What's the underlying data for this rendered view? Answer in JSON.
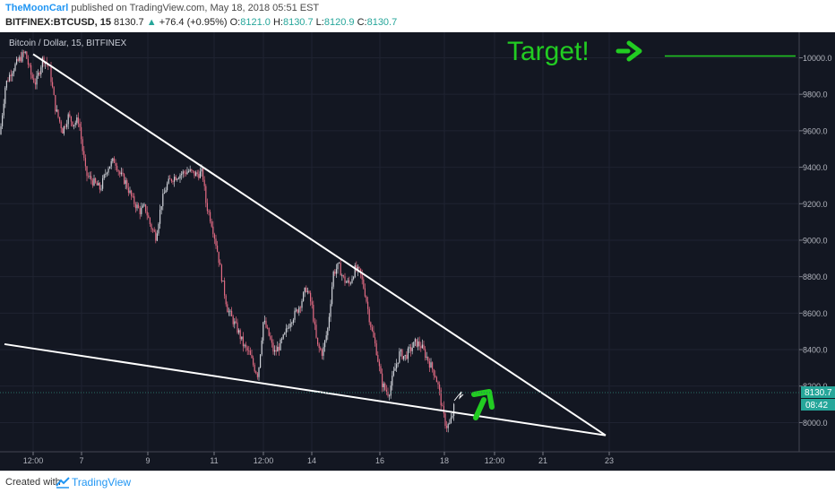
{
  "header": {
    "author": "TheMoonCarl",
    "published_text": "published on TradingView.com, May 18, 2018 05:51 EST",
    "symbol": "BITFINEX:BTCUSD, 15",
    "last": "8130.7",
    "change_arrow": "▲",
    "change": "+76.4 (+0.95%)",
    "o_label": "O:",
    "o_value": "8121.0",
    "h_label": "H:",
    "h_value": "8130.7",
    "l_label": "L:",
    "l_value": "8120.9",
    "c_label": "C:",
    "c_value": "8130.7"
  },
  "footer": {
    "created_with": "Created with",
    "brand": "TradingView",
    "logo_icon": "tradingview-logo-icon"
  },
  "chart_data": {
    "type": "candlestick",
    "title": "Bitcoin / Dollar, 15, BITFINEX",
    "ylim": [
      7840,
      10140
    ],
    "y_ticks": [
      "10000.0",
      "9800.0",
      "9600.0",
      "9400.0",
      "9200.0",
      "9000.0",
      "8800.0",
      "8600.0",
      "8400.0",
      "8200.0",
      "8000.0"
    ],
    "x_ticks": [
      "12:00",
      "7",
      "9",
      "11",
      "12:00",
      "14",
      "16",
      "18",
      "12:00",
      "21",
      "23"
    ],
    "price_label": "8130.7",
    "countdown_label": "08:42",
    "annotation_text": "Target!",
    "annotation_color": "#22cc22",
    "colors": {
      "background": "#131722",
      "up": "#cfd2d9",
      "down": "#e06a82",
      "trendline": "#ffffff",
      "target_line": "#22cc22",
      "price_tag": "#26a69a"
    },
    "price_path": [
      [
        0,
        9580
      ],
      [
        6,
        9850
      ],
      [
        12,
        9920
      ],
      [
        20,
        9980
      ],
      [
        28,
        10030
      ],
      [
        35,
        9900
      ],
      [
        40,
        9860
      ],
      [
        48,
        10000
      ],
      [
        55,
        9950
      ],
      [
        62,
        9720
      ],
      [
        70,
        9600
      ],
      [
        76,
        9680
      ],
      [
        82,
        9640
      ],
      [
        88,
        9660
      ],
      [
        92,
        9500
      ],
      [
        96,
        9360
      ],
      [
        104,
        9320
      ],
      [
        112,
        9280
      ],
      [
        120,
        9400
      ],
      [
        128,
        9440
      ],
      [
        134,
        9360
      ],
      [
        140,
        9320
      ],
      [
        148,
        9220
      ],
      [
        156,
        9160
      ],
      [
        162,
        9180
      ],
      [
        168,
        9080
      ],
      [
        174,
        9020
      ],
      [
        180,
        9200
      ],
      [
        186,
        9300
      ],
      [
        192,
        9340
      ],
      [
        200,
        9360
      ],
      [
        210,
        9380
      ],
      [
        218,
        9360
      ],
      [
        226,
        9370
      ],
      [
        230,
        9200
      ],
      [
        236,
        9100
      ],
      [
        242,
        8960
      ],
      [
        248,
        8780
      ],
      [
        254,
        8620
      ],
      [
        260,
        8560
      ],
      [
        266,
        8500
      ],
      [
        272,
        8420
      ],
      [
        278,
        8380
      ],
      [
        284,
        8300
      ],
      [
        288,
        8260
      ],
      [
        294,
        8560
      ],
      [
        300,
        8480
      ],
      [
        306,
        8380
      ],
      [
        312,
        8420
      ],
      [
        318,
        8480
      ],
      [
        324,
        8560
      ],
      [
        330,
        8600
      ],
      [
        336,
        8660
      ],
      [
        342,
        8740
      ],
      [
        348,
        8640
      ],
      [
        354,
        8420
      ],
      [
        360,
        8380
      ],
      [
        366,
        8520
      ],
      [
        372,
        8820
      ],
      [
        378,
        8860
      ],
      [
        384,
        8780
      ],
      [
        390,
        8760
      ],
      [
        396,
        8840
      ],
      [
        402,
        8820
      ],
      [
        408,
        8700
      ],
      [
        412,
        8580
      ],
      [
        416,
        8480
      ],
      [
        420,
        8400
      ],
      [
        426,
        8220
      ],
      [
        430,
        8180
      ],
      [
        434,
        8160
      ],
      [
        440,
        8280
      ],
      [
        446,
        8380
      ],
      [
        452,
        8360
      ],
      [
        458,
        8400
      ],
      [
        464,
        8440
      ],
      [
        470,
        8420
      ],
      [
        476,
        8360
      ],
      [
        482,
        8300
      ],
      [
        486,
        8260
      ],
      [
        490,
        8180
      ],
      [
        494,
        8060
      ],
      [
        498,
        7980
      ],
      [
        502,
        7990
      ],
      [
        506,
        8060
      ],
      [
        508,
        8130.7
      ]
    ],
    "trendlines": [
      {
        "name": "upper",
        "x1": 37,
        "y1": 10020,
        "x2": 676,
        "y2": 7930
      },
      {
        "name": "lower",
        "x1": 5,
        "y1": 8430,
        "x2": 676,
        "y2": 7930
      },
      {
        "name": "target",
        "x1": 742,
        "y1": 10010,
        "x2": 888,
        "y2": 10010
      }
    ]
  }
}
